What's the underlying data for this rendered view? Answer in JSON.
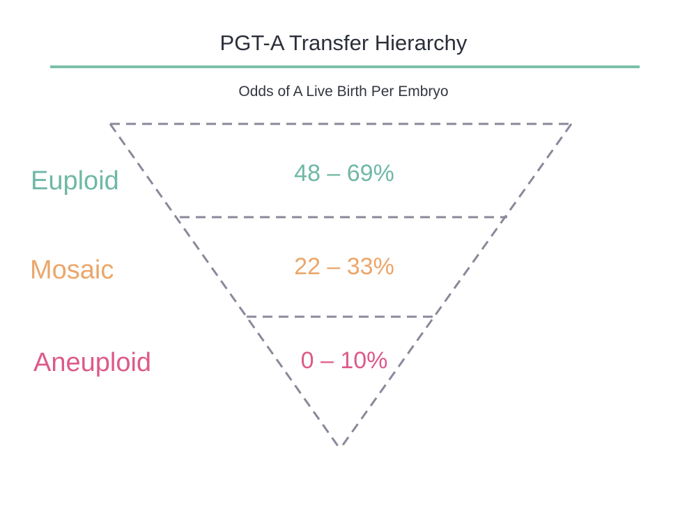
{
  "title": "PGT-A Transfer Hierarchy",
  "subtitle": "Odds of A Live Birth Per Embryo",
  "colors": {
    "accent_rule": "#7cc0ac",
    "funnel_outline": "#8a8899",
    "euploid": "#6fb8a6",
    "mosaic": "#eba66a",
    "aneuploid": "#dc5a8a"
  },
  "tiers": [
    {
      "label": "Euploid",
      "value": "48 – 69%"
    },
    {
      "label": "Mosaic",
      "value": "22 – 33%"
    },
    {
      "label": "Aneuploid",
      "value": "0 – 10%"
    }
  ]
}
